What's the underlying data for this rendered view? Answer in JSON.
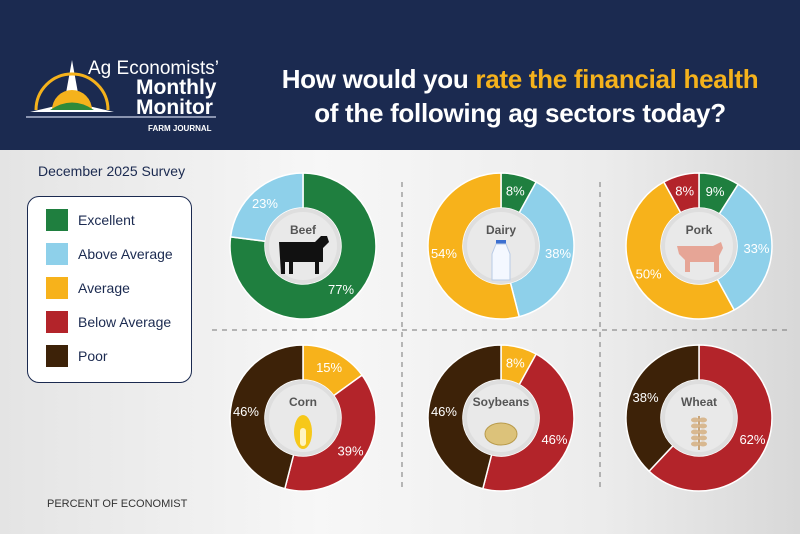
{
  "header": {
    "logo_line1": "Ag Economists’",
    "logo_line2": "Monthly",
    "logo_line3": "Monitor",
    "brand": "FARM JOURNAL",
    "title_pre": "How would you ",
    "title_highlight": "rate the financial health",
    "title_line2": "of the following ag sectors today?"
  },
  "survey_label": "December 2025 Survey",
  "footer": "PERCENT OF ECONOMIST",
  "legend": [
    {
      "label": "Excellent",
      "color": "#1f7f3f"
    },
    {
      "label": "Above Average",
      "color": "#8ed0ea"
    },
    {
      "label": "Average",
      "color": "#f7b21b"
    },
    {
      "label": "Below Average",
      "color": "#b3242a"
    },
    {
      "label": "Poor",
      "color": "#3d2208"
    }
  ],
  "chart_data": [
    {
      "type": "pie",
      "title": "Beef",
      "icon": "cow-icon",
      "values": {
        "Excellent": 77,
        "Above Average": 23
      }
    },
    {
      "type": "pie",
      "title": "Dairy",
      "icon": "milk-bottle-icon",
      "values": {
        "Excellent": 8,
        "Above Average": 38,
        "Average": 54
      }
    },
    {
      "type": "pie",
      "title": "Pork",
      "icon": "pig-icon",
      "values": {
        "Excellent": 9,
        "Above Average": 33,
        "Average": 50,
        "Below Average": 8
      }
    },
    {
      "type": "pie",
      "title": "Corn",
      "icon": "corn-icon",
      "values": {
        "Average": 15,
        "Below Average": 39,
        "Poor": 46
      }
    },
    {
      "type": "pie",
      "title": "Soybeans",
      "icon": "soybean-icon",
      "values": {
        "Average": 8,
        "Below Average": 46,
        "Poor": 46
      }
    },
    {
      "type": "pie",
      "title": "Wheat",
      "icon": "wheat-icon",
      "values": {
        "Below Average": 62,
        "Poor": 38
      }
    }
  ]
}
